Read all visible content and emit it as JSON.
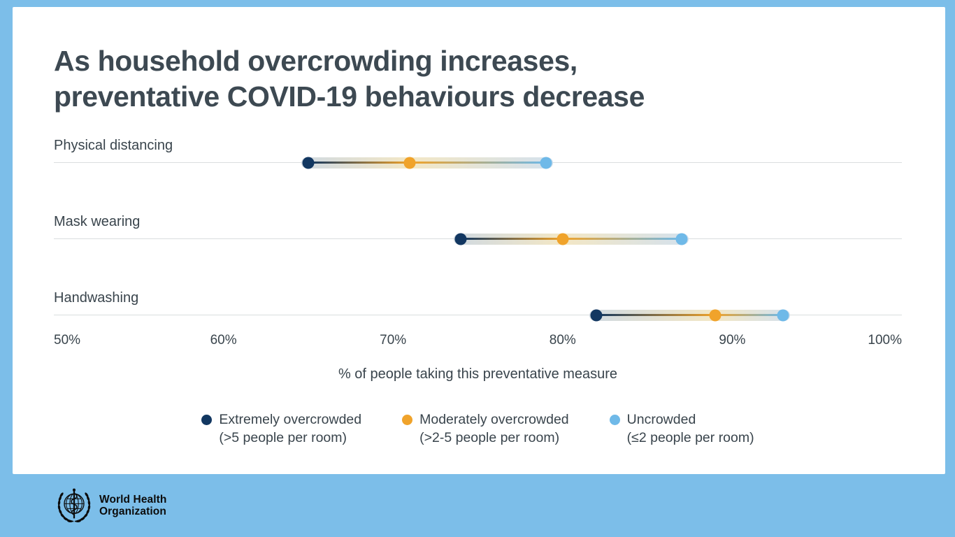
{
  "title": {
    "line1": "As household overcrowding increases,",
    "line2": "preventative COVID-19 behaviours decrease"
  },
  "colors": {
    "page_background": "#7CBEE9",
    "card_background": "#FFFFFF",
    "text": "#39444C",
    "extremely_overcrowded": "#123761",
    "moderately_overcrowded": "#F0A32B",
    "uncrowded": "#6FB9E8",
    "gridline": "#DADDDF"
  },
  "chart_data": {
    "type": "dumbbell",
    "categories": [
      "Physical distancing",
      "Mask wearing",
      "Handwashing"
    ],
    "series": [
      {
        "name": "Extremely overcrowded (>5 people per room)",
        "color": "#123761",
        "values": [
          65,
          74,
          82
        ]
      },
      {
        "name": "Moderately overcrowded (>2-5 people per room)",
        "color": "#F0A32B",
        "values": [
          71,
          80,
          89
        ]
      },
      {
        "name": "Uncrowded (≤2 people per room)",
        "color": "#6FB9E8",
        "values": [
          79,
          87,
          93
        ]
      }
    ],
    "xlabel": "% of people taking this preventative measure",
    "x_ticks": [
      "50%",
      "60%",
      "70%",
      "80%",
      "90%",
      "100%"
    ],
    "xlim": [
      50,
      100
    ],
    "grid": "per-row baseline only",
    "legend_position": "bottom"
  },
  "legend": [
    {
      "label": "Extremely overcrowded",
      "sublabel": "(>5 people per room)",
      "color": "#123761",
      "icon": "circle-dot"
    },
    {
      "label": "Moderately overcrowded",
      "sublabel": "(>2-5 people per room)",
      "color": "#F0A32B",
      "icon": "circle-dot"
    },
    {
      "label": "Uncrowded",
      "sublabel": "(≤2 people per room)",
      "color": "#6FB9E8",
      "icon": "circle-dot"
    }
  ],
  "footer": {
    "org_line1": "World Health",
    "org_line2": "Organization",
    "logo_icon": "who-emblem"
  }
}
